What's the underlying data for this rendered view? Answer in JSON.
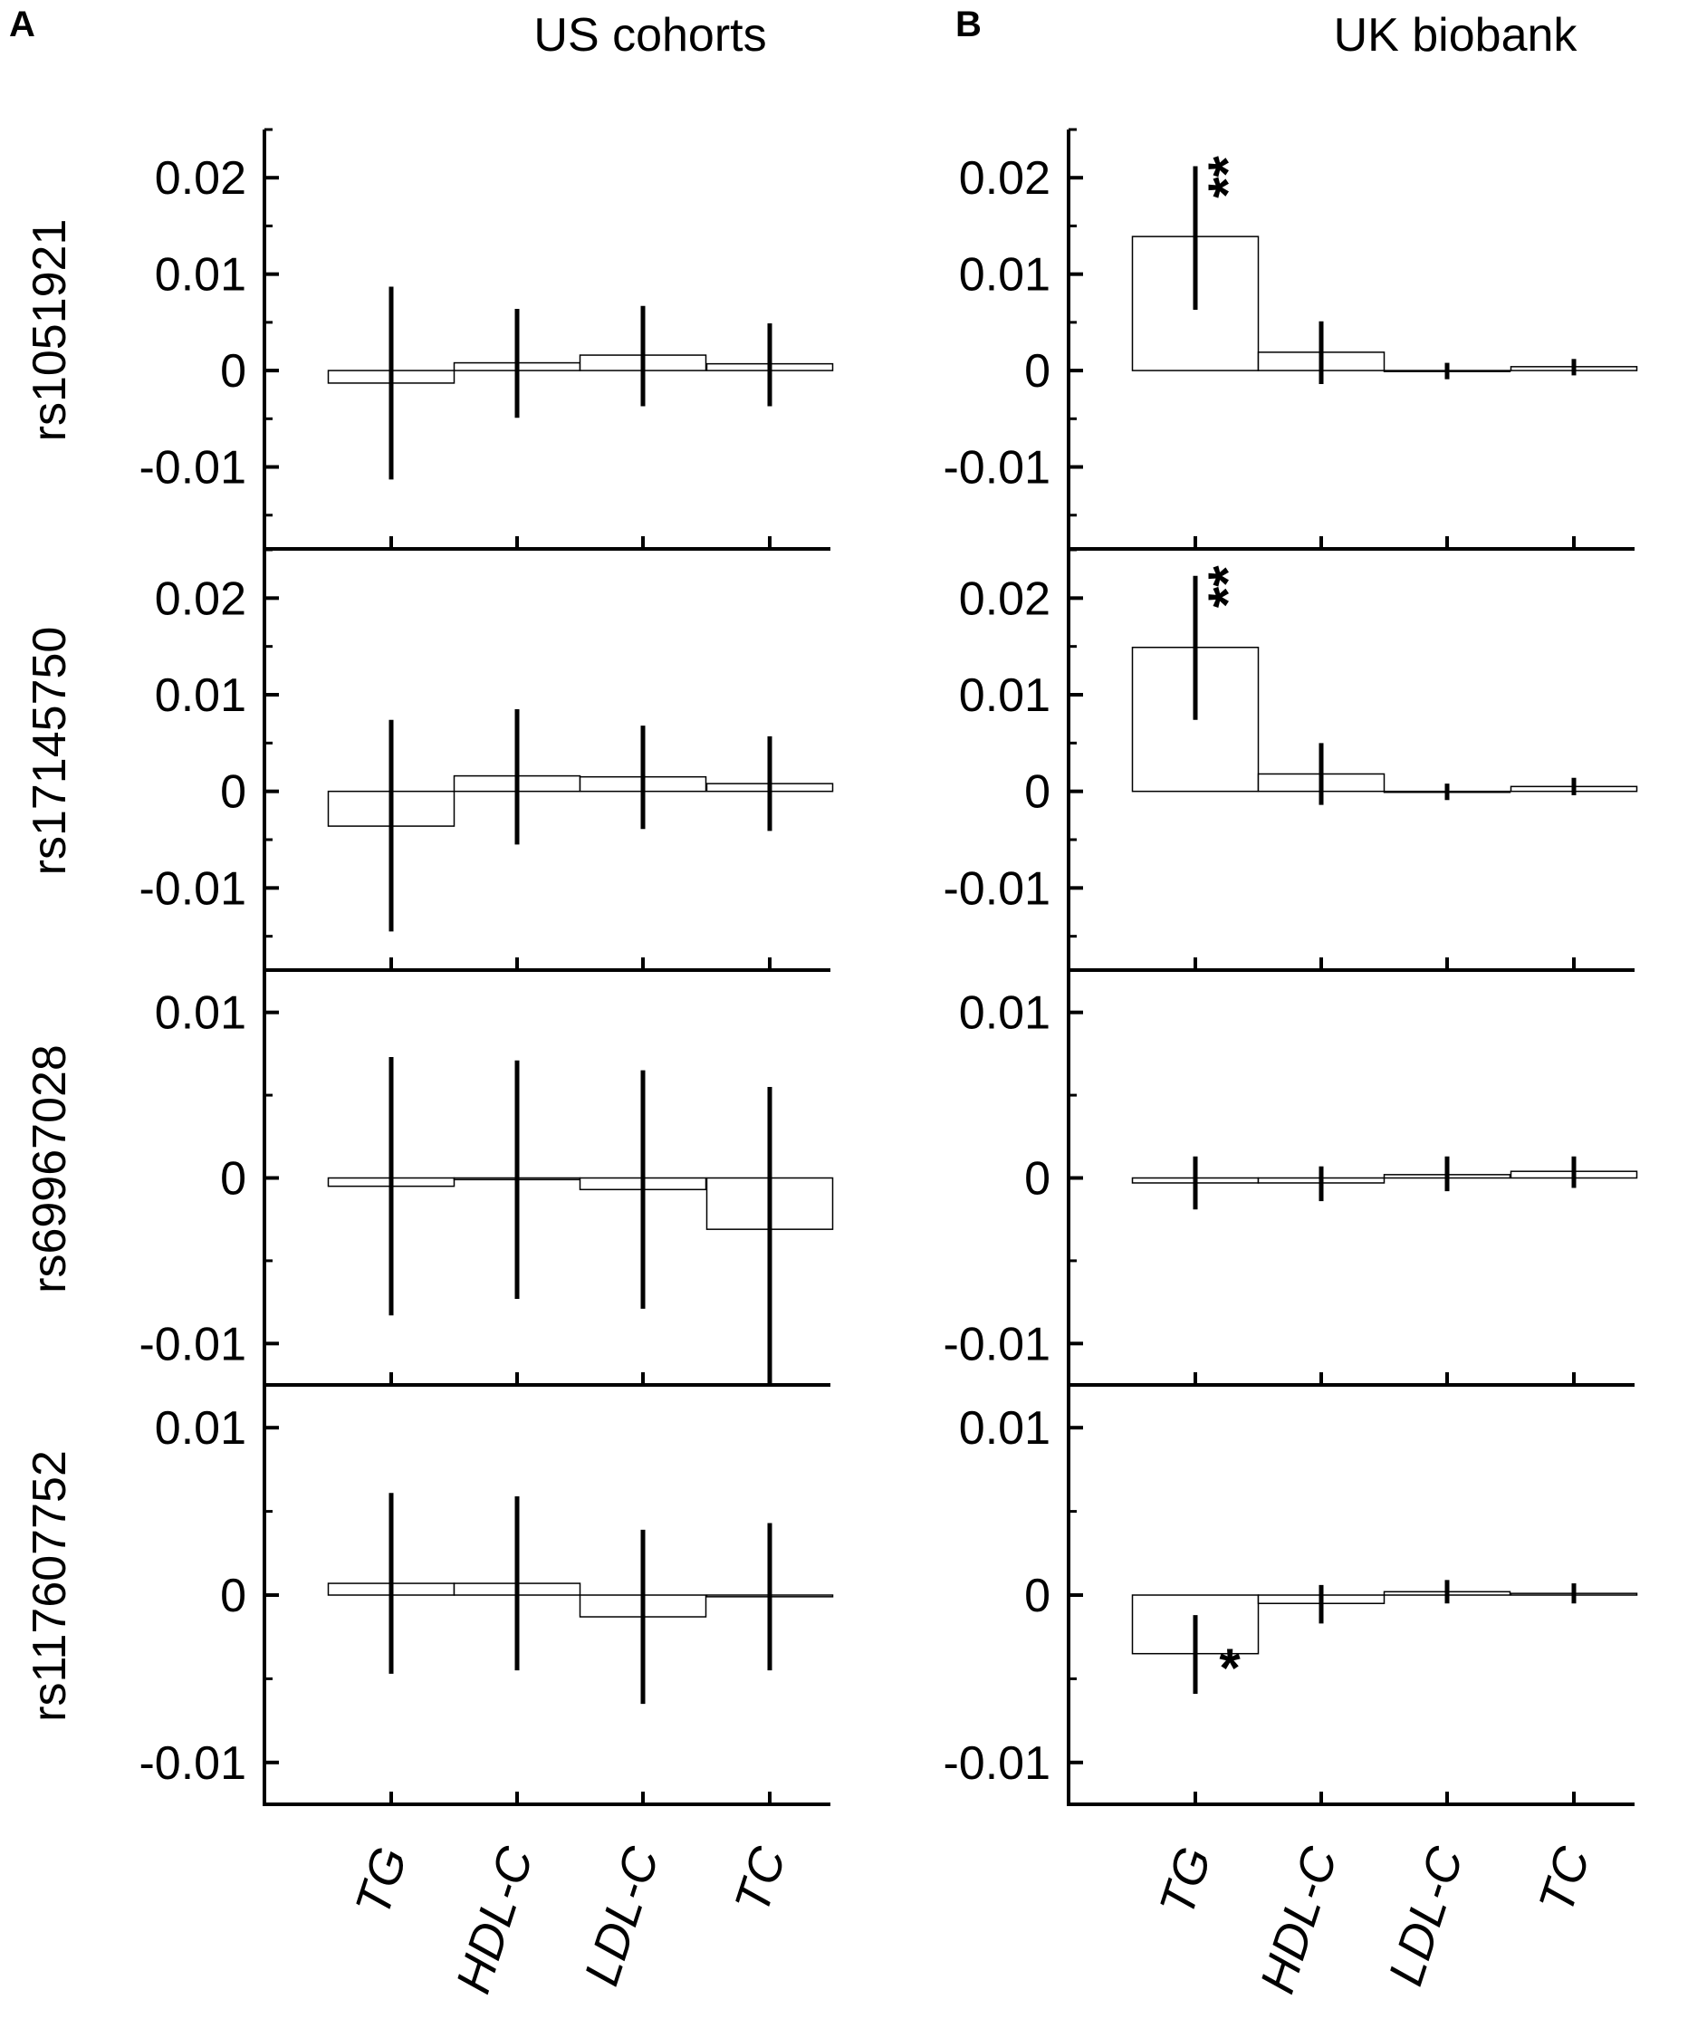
{
  "panel_letters": [
    "A",
    "B"
  ],
  "column_titles": [
    "US cohorts",
    "UK biobank"
  ],
  "chart_data": [
    {
      "type": "bar",
      "panel": "A",
      "title": "US cohorts",
      "row_label": "rs1051921",
      "categories": [
        "TG",
        "HDL-C",
        "LDL-C",
        "TC"
      ],
      "values": [
        -0.0013,
        0.0008,
        0.0016,
        0.0007
      ],
      "err_low": [
        -0.0113,
        -0.0049,
        -0.0037,
        -0.0037
      ],
      "err_high": [
        0.0087,
        0.0064,
        0.0067,
        0.0049
      ],
      "significance": [
        "",
        "",
        "",
        ""
      ],
      "ylim": [
        -0.0185,
        0.025
      ],
      "yticks": [
        -0.01,
        0,
        0.01,
        0.02
      ],
      "ytick_labels": [
        "-0.01",
        "0",
        "0.01",
        "0.02"
      ],
      "show_xlabels": false
    },
    {
      "type": "bar",
      "panel": "B",
      "title": "UK biobank",
      "row_label": "rs1051921",
      "categories": [
        "TG",
        "HDL-C",
        "LDL-C",
        "TC"
      ],
      "values": [
        0.0139,
        0.0019,
        -0.0001,
        0.0004
      ],
      "err_low": [
        0.0063,
        -0.0014,
        -0.0009,
        -0.0005
      ],
      "err_high": [
        0.0212,
        0.0051,
        0.0008,
        0.0012
      ],
      "significance": [
        "**",
        "",
        "",
        ""
      ],
      "ylim": [
        -0.0185,
        0.025
      ],
      "yticks": [
        -0.01,
        0,
        0.01,
        0.02
      ],
      "ytick_labels": [
        "-0.01",
        "0",
        "0.01",
        "0.02"
      ],
      "show_xlabels": false
    },
    {
      "type": "bar",
      "panel": "A",
      "row_label": "rs17145750",
      "categories": [
        "TG",
        "HDL-C",
        "LDL-C",
        "TC"
      ],
      "values": [
        -0.0036,
        0.0016,
        0.0015,
        0.0008
      ],
      "err_low": [
        -0.0145,
        -0.0055,
        -0.0039,
        -0.0041
      ],
      "err_high": [
        0.0074,
        0.0085,
        0.0068,
        0.0057
      ],
      "significance": [
        "",
        "",
        "",
        ""
      ],
      "ylim": [
        -0.0185,
        0.025
      ],
      "yticks": [
        -0.01,
        0,
        0.01,
        0.02
      ],
      "ytick_labels": [
        "-0.01",
        "0",
        "0.01",
        "0.02"
      ],
      "show_xlabels": false
    },
    {
      "type": "bar",
      "panel": "B",
      "row_label": "rs17145750",
      "categories": [
        "TG",
        "HDL-C",
        "LDL-C",
        "TC"
      ],
      "values": [
        0.0149,
        0.0018,
        -0.0001,
        0.0005
      ],
      "err_low": [
        0.0074,
        -0.0014,
        -0.0009,
        -0.0004
      ],
      "err_high": [
        0.0223,
        0.005,
        0.0008,
        0.0014
      ],
      "significance": [
        "**",
        "",
        "",
        ""
      ],
      "ylim": [
        -0.0185,
        0.025
      ],
      "yticks": [
        -0.01,
        0,
        0.01,
        0.02
      ],
      "ytick_labels": [
        "-0.01",
        "0",
        "0.01",
        "0.02"
      ],
      "show_xlabels": false
    },
    {
      "type": "bar",
      "panel": "A",
      "row_label": "rs69967028",
      "categories": [
        "TG",
        "HDL-C",
        "LDL-C",
        "TC"
      ],
      "values": [
        -0.0005,
        -0.0001,
        -0.0007,
        -0.0031
      ],
      "err_low": [
        -0.0083,
        -0.0073,
        -0.0079,
        -0.0125
      ],
      "err_high": [
        0.0073,
        0.0071,
        0.0065,
        0.0055
      ],
      "significance": [
        "",
        "",
        "",
        ""
      ],
      "ylim": [
        -0.0125,
        0.0125
      ],
      "yticks": [
        -0.01,
        0,
        0.01
      ],
      "ytick_labels": [
        "-0.01",
        "0",
        "0.01"
      ],
      "show_xlabels": false
    },
    {
      "type": "bar",
      "panel": "B",
      "row_label": "rs69967028",
      "categories": [
        "TG",
        "HDL-C",
        "LDL-C",
        "TC"
      ],
      "values": [
        -0.0003,
        -0.0003,
        0.0002,
        0.0004
      ],
      "err_low": [
        -0.0019,
        -0.0014,
        -0.0008,
        -0.0006
      ],
      "err_high": [
        0.0013,
        0.0007,
        0.0013,
        0.0013
      ],
      "significance": [
        "",
        "",
        "",
        ""
      ],
      "ylim": [
        -0.0125,
        0.0125
      ],
      "yticks": [
        -0.01,
        0,
        0.01
      ],
      "ytick_labels": [
        "-0.01",
        "0",
        "0.01"
      ],
      "show_xlabels": false
    },
    {
      "type": "bar",
      "panel": "A",
      "row_label": "rs117607752",
      "categories": [
        "TG",
        "HDL-C",
        "LDL-C",
        "TC"
      ],
      "values": [
        0.0007,
        0.0007,
        -0.0013,
        -0.0001
      ],
      "err_low": [
        -0.0047,
        -0.0045,
        -0.0065,
        -0.0045
      ],
      "err_high": [
        0.0061,
        0.0059,
        0.0039,
        0.0043
      ],
      "significance": [
        "",
        "",
        "",
        ""
      ],
      "ylim": [
        -0.0125,
        0.0125
      ],
      "yticks": [
        -0.01,
        0,
        0.01
      ],
      "ytick_labels": [
        "-0.01",
        "0",
        "0.01"
      ],
      "show_xlabels": true
    },
    {
      "type": "bar",
      "panel": "B",
      "row_label": "rs117607752",
      "categories": [
        "TG",
        "HDL-C",
        "LDL-C",
        "TC"
      ],
      "values": [
        -0.0035,
        -0.0005,
        0.0002,
        0.0001
      ],
      "err_low": [
        -0.0059,
        -0.0017,
        -0.0005,
        -0.0005
      ],
      "err_high": [
        -0.0012,
        0.0006,
        0.0009,
        0.0007
      ],
      "significance": [
        "*",
        "",
        "",
        ""
      ],
      "ylim": [
        -0.0125,
        0.0125
      ],
      "yticks": [
        -0.01,
        0,
        0.01
      ],
      "ytick_labels": [
        "-0.01",
        "0",
        "0.01"
      ],
      "show_xlabels": true
    }
  ]
}
